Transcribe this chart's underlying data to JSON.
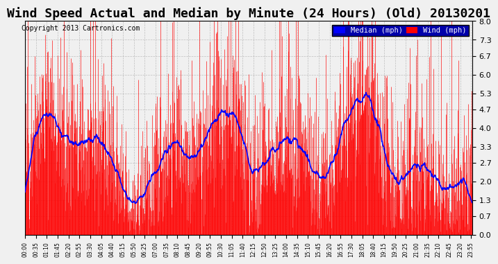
{
  "title": "Wind Speed Actual and Median by Minute (24 Hours) (Old) 20130201",
  "copyright": "Copyright 2013 Cartronics.com",
  "ylabel": "",
  "ylim": [
    0.0,
    8.0
  ],
  "yticks": [
    0.0,
    0.7,
    1.3,
    2.0,
    2.7,
    3.3,
    4.0,
    4.7,
    5.3,
    6.0,
    6.7,
    7.3,
    8.0
  ],
  "legend_median_color": "#0000ff",
  "legend_wind_color": "#ff0000",
  "legend_median_bg": "#0000ff",
  "legend_wind_bg": "#ff0000",
  "bar_color": "#ff0000",
  "line_color": "#0000ff",
  "background_color": "#e8e8e8",
  "grid_color": "#aaaaaa",
  "title_fontsize": 13,
  "num_minutes": 1440,
  "x_tick_interval": 35,
  "tick_labels_start": "00:00",
  "seed": 42
}
